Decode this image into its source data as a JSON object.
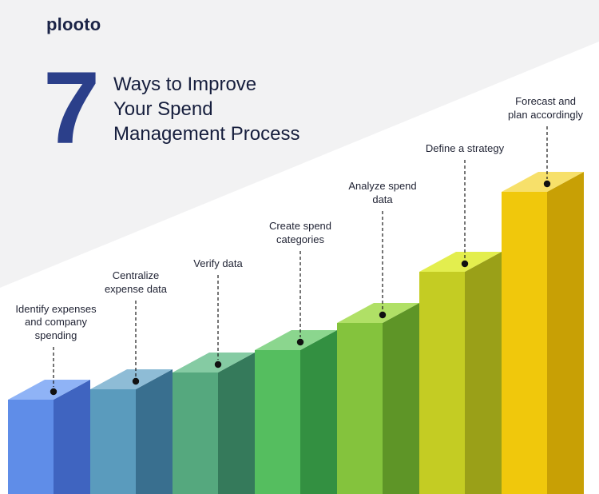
{
  "brand": {
    "logo_text": "plooto"
  },
  "header": {
    "number": "7",
    "title_lines": [
      "Ways to Improve",
      "Your Spend",
      "Management Process"
    ]
  },
  "steps": [
    {
      "lines": [
        "Identify expenses",
        "and company",
        "spending"
      ],
      "colors": {
        "top": "#8fb3f6",
        "front": "#5f8de8",
        "side": "#3f64c0"
      }
    },
    {
      "lines": [
        "Centralize",
        "expense data"
      ],
      "colors": {
        "top": "#8ebcd6",
        "front": "#5a9bbd",
        "side": "#396f8f"
      }
    },
    {
      "lines": [
        "Verify data"
      ],
      "colors": {
        "top": "#85cba3",
        "front": "#55a87e",
        "side": "#357a5b"
      }
    },
    {
      "lines": [
        "Create spend",
        "categories"
      ],
      "colors": {
        "top": "#8bd68e",
        "front": "#55be5f",
        "side": "#339041"
      }
    },
    {
      "lines": [
        "Analyze spend",
        "data"
      ],
      "colors": {
        "top": "#b0e066",
        "front": "#84c33d",
        "side": "#5e9527"
      }
    },
    {
      "lines": [
        "Define a strategy"
      ],
      "colors": {
        "top": "#e3ee4e",
        "front": "#c4cc23",
        "side": "#9aa018"
      }
    },
    {
      "lines": [
        "Forecast and",
        "plan accordingly"
      ],
      "colors": {
        "top": "#f7e06a",
        "front": "#f0c80c",
        "side": "#c8a005"
      }
    }
  ]
}
